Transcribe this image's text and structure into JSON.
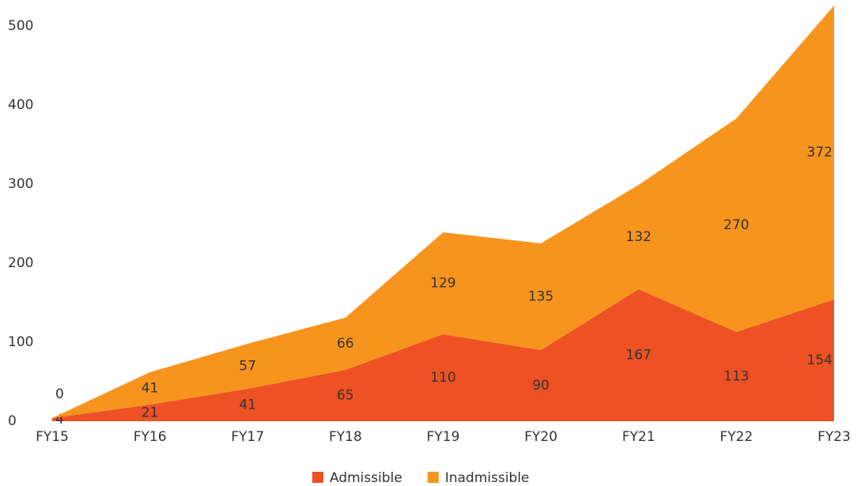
{
  "chart_data": {
    "type": "stacked_area",
    "categories": [
      "FY15",
      "FY16",
      "FY17",
      "FY18",
      "FY19",
      "FY20",
      "FY21",
      "FY22",
      "FY23"
    ],
    "series": [
      {
        "name": "Admissible",
        "color": "#ee5124",
        "values": [
          4,
          21,
          41,
          65,
          110,
          90,
          167,
          113,
          154
        ]
      },
      {
        "name": "Inadmissible",
        "color": "#f7941d",
        "values": [
          0,
          41,
          57,
          66,
          129,
          135,
          132,
          270,
          372
        ]
      }
    ],
    "ylim": [
      0,
      530
    ],
    "yticks": [
      0,
      100,
      200,
      300,
      400,
      500
    ],
    "legend": "bottom",
    "grid": false
  }
}
